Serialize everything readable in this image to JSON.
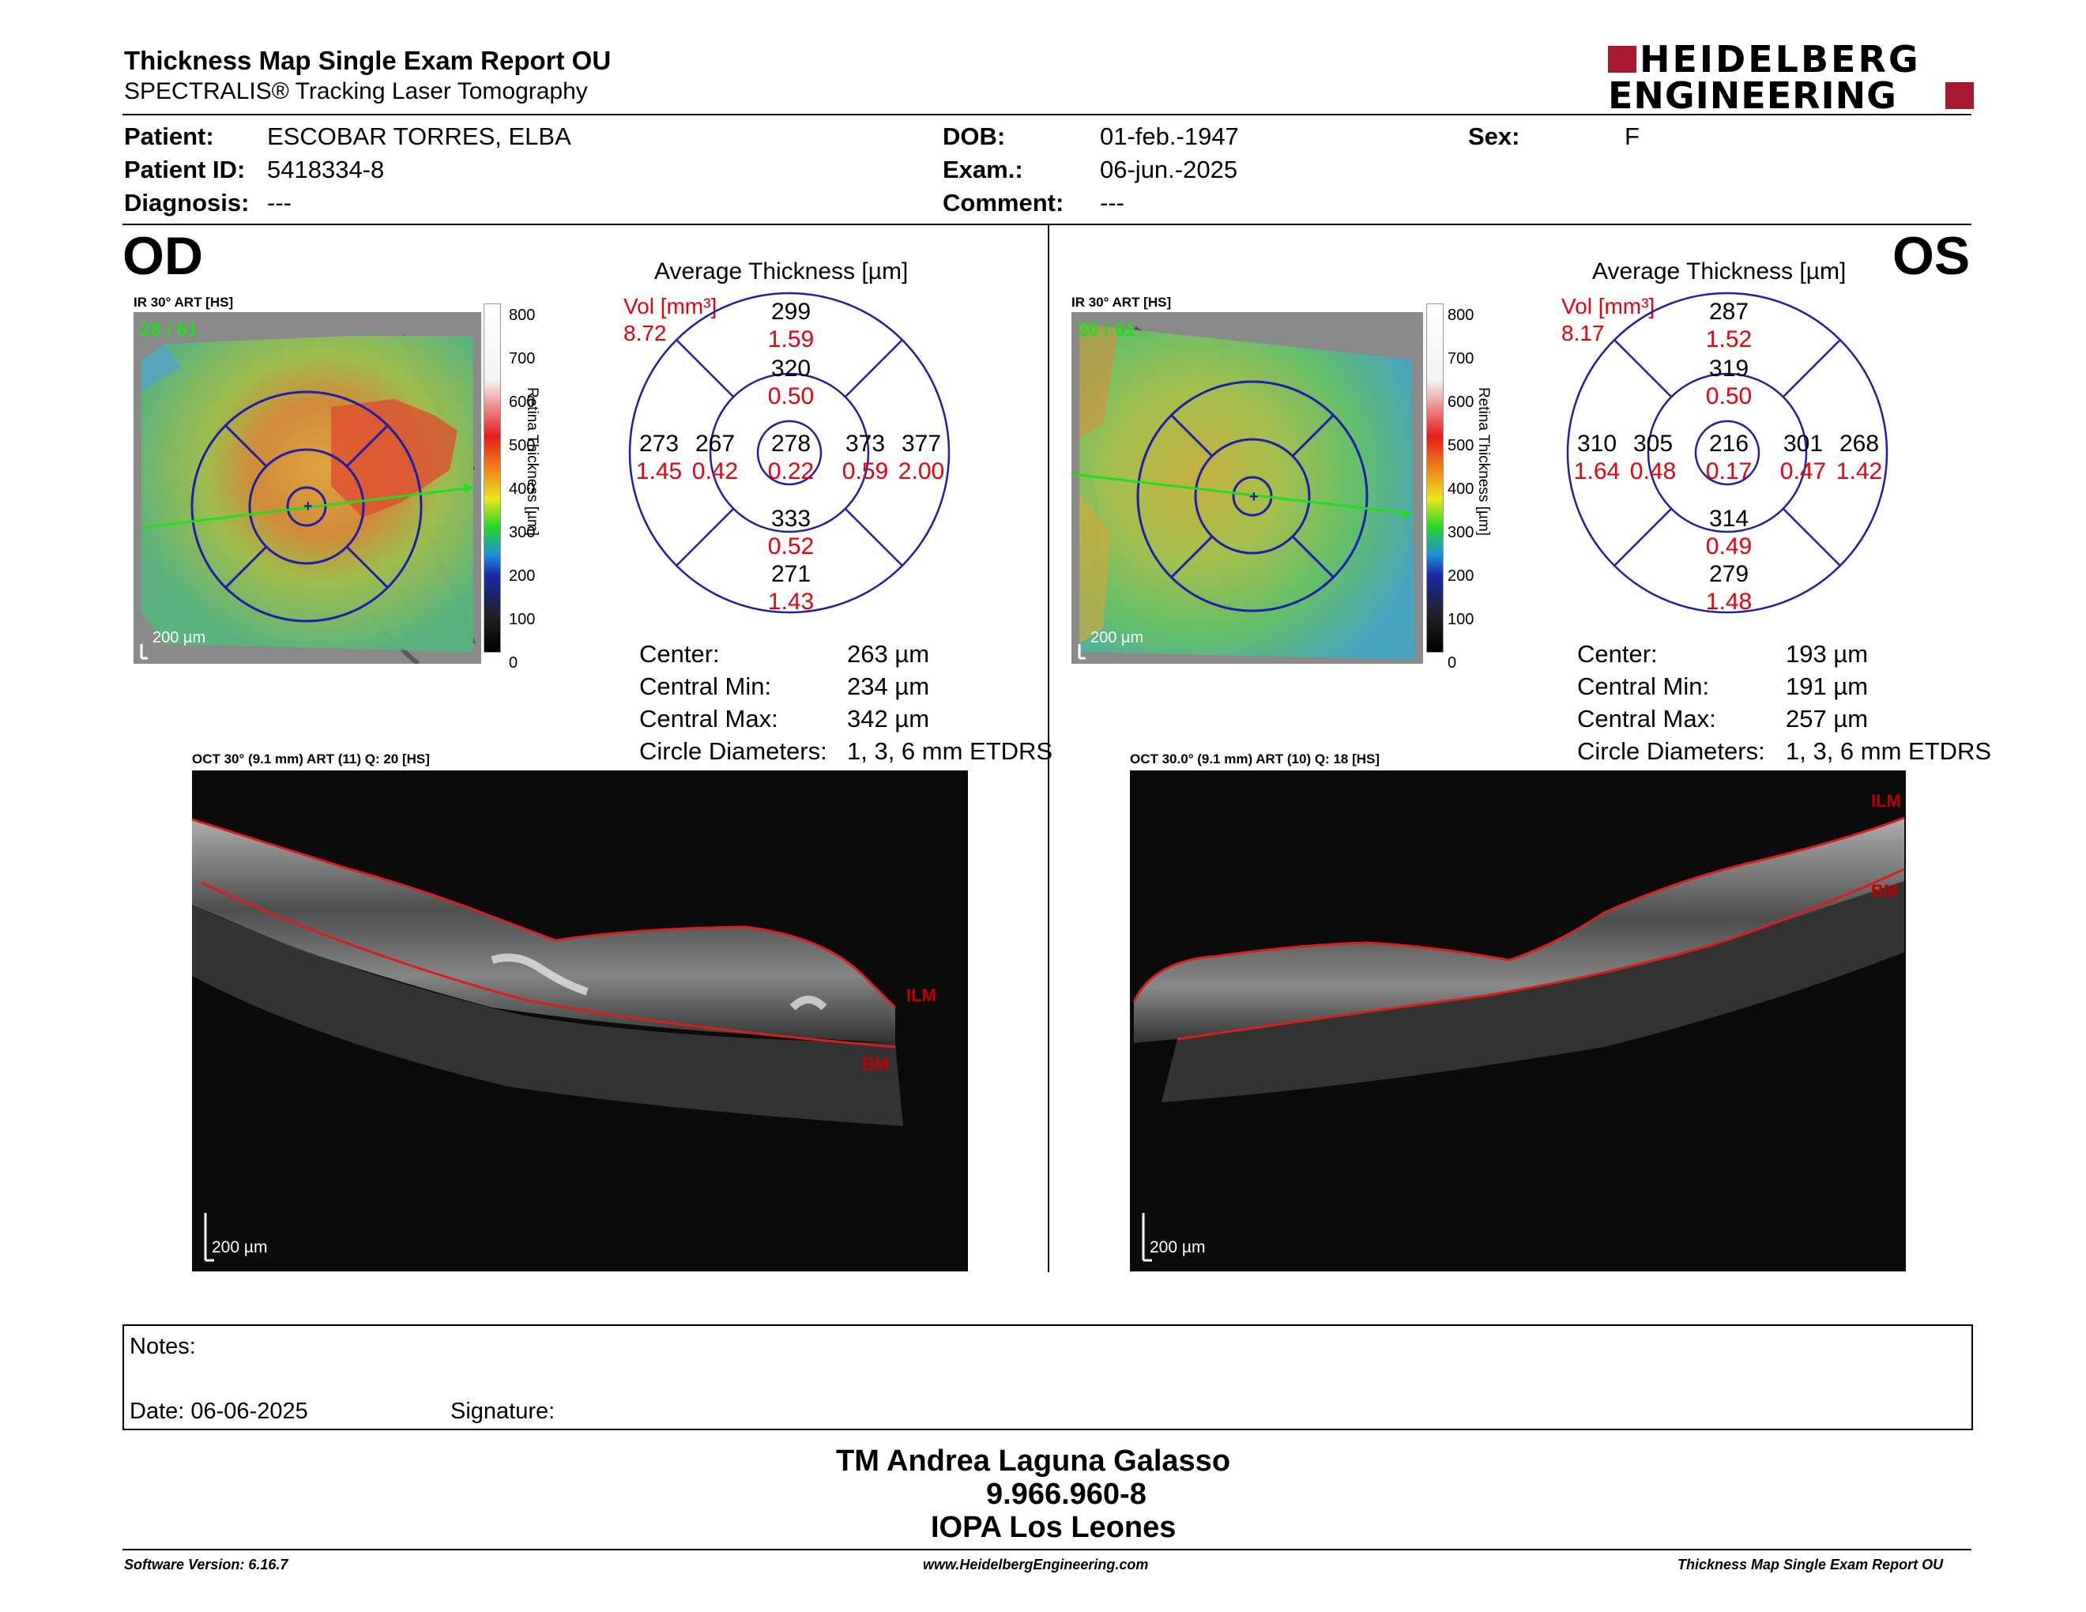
{
  "header": {
    "title": "Thickness Map Single Exam Report OU",
    "subtitle": "SPECTRALIS® Tracking Laser Tomography",
    "logo_line1": "HEIDELBERG",
    "logo_line2": "ENGINEERING"
  },
  "patient_info": {
    "patient_label": "Patient:",
    "patient_value": "ESCOBAR TORRES, ELBA",
    "patient_id_label": "Patient ID:",
    "patient_id_value": "5418334-8",
    "diagnosis_label": "Diagnosis:",
    "diagnosis_value": "---",
    "dob_label": "DOB:",
    "dob_value": "01-feb.-1947",
    "exam_label": "Exam.:",
    "exam_value": "06-jun.-2025",
    "comment_label": "Comment:",
    "comment_value": "---",
    "sex_label": "Sex:",
    "sex_value": "F"
  },
  "colorbar": {
    "ticks": [
      "800",
      "700",
      "600",
      "500",
      "400",
      "300",
      "200",
      "100",
      "0"
    ],
    "label": "Retina Thickness [µm]"
  },
  "od": {
    "eye": "OD",
    "ir_label": "IR 30° ART [HS]",
    "ir_overlay": "28 / 61",
    "scale_ir": "200 µm",
    "chart_title": "Average Thickness [µm]",
    "vol_label": "Vol [mm³]",
    "vol_total": "8.72",
    "etdrs": {
      "outer_top": "299",
      "outer_top_vol": "1.59",
      "inner_top": "320",
      "inner_top_vol": "0.50",
      "outer_left": "273",
      "outer_left_vol": "1.45",
      "inner_left": "267",
      "inner_left_vol": "0.42",
      "center": "278",
      "center_vol": "0.22",
      "inner_right": "373",
      "inner_right_vol": "0.59",
      "outer_right": "377",
      "outer_right_vol": "2.00",
      "inner_bottom": "333",
      "inner_bottom_vol": "0.52",
      "outer_bottom": "271",
      "outer_bottom_vol": "1.43"
    },
    "stats": {
      "center_label": "Center:",
      "center_value": "263 µm",
      "min_label": "Central Min:",
      "min_value": "234 µm",
      "max_label": "Central Max:",
      "max_value": "342 µm",
      "diam_label": "Circle Diameters:",
      "diam_value": "1, 3, 6 mm ETDRS"
    },
    "oct_label": "OCT 30° (9.1 mm) ART (11) Q: 20 [HS]",
    "ilm": "ILM",
    "bm": "BM",
    "scale_oct": "200 µm"
  },
  "os": {
    "eye": "OS",
    "ir_label": "IR 30° ART [HS]",
    "ir_overlay": "30 / 61",
    "scale_ir": "200 µm",
    "chart_title": "Average Thickness [µm]",
    "vol_label": "Vol [mm³]",
    "vol_total": "8.17",
    "etdrs": {
      "outer_top": "287",
      "outer_top_vol": "1.52",
      "inner_top": "319",
      "inner_top_vol": "0.50",
      "outer_left": "310",
      "outer_left_vol": "1.64",
      "inner_left": "305",
      "inner_left_vol": "0.48",
      "center": "216",
      "center_vol": "0.17",
      "inner_right": "301",
      "inner_right_vol": "0.47",
      "outer_right": "268",
      "outer_right_vol": "1.42",
      "inner_bottom": "314",
      "inner_bottom_vol": "0.49",
      "outer_bottom": "279",
      "outer_bottom_vol": "1.48"
    },
    "stats": {
      "center_label": "Center:",
      "center_value": "193 µm",
      "min_label": "Central Min:",
      "min_value": "191 µm",
      "max_label": "Central Max:",
      "max_value": "257 µm",
      "diam_label": "Circle Diameters:",
      "diam_value": "1, 3, 6 mm ETDRS"
    },
    "oct_label": "OCT 30.0° (9.1 mm) ART (10) Q: 18 [HS]",
    "ilm": "ILM",
    "bm": "BM",
    "scale_oct": "200 µm"
  },
  "notes": {
    "notes_label": "Notes:",
    "date_label": "Date: 06-06-2025",
    "signature_label": "Signature:"
  },
  "signoff": {
    "name": "TM Andrea Laguna Galasso",
    "id": "9.966.960-8",
    "institution": "IOPA Los Leones"
  },
  "footer": {
    "software": "Software Version: 6.16.7",
    "website": "www.HeidelbergEngineering.com",
    "report": "Thickness Map Single Exam Report OU"
  },
  "colors": {
    "accent_red": "#e8000b",
    "logo_red": "#a6192e",
    "grid_blue": "#1f1fa8",
    "scan_green": "#22dd22"
  }
}
